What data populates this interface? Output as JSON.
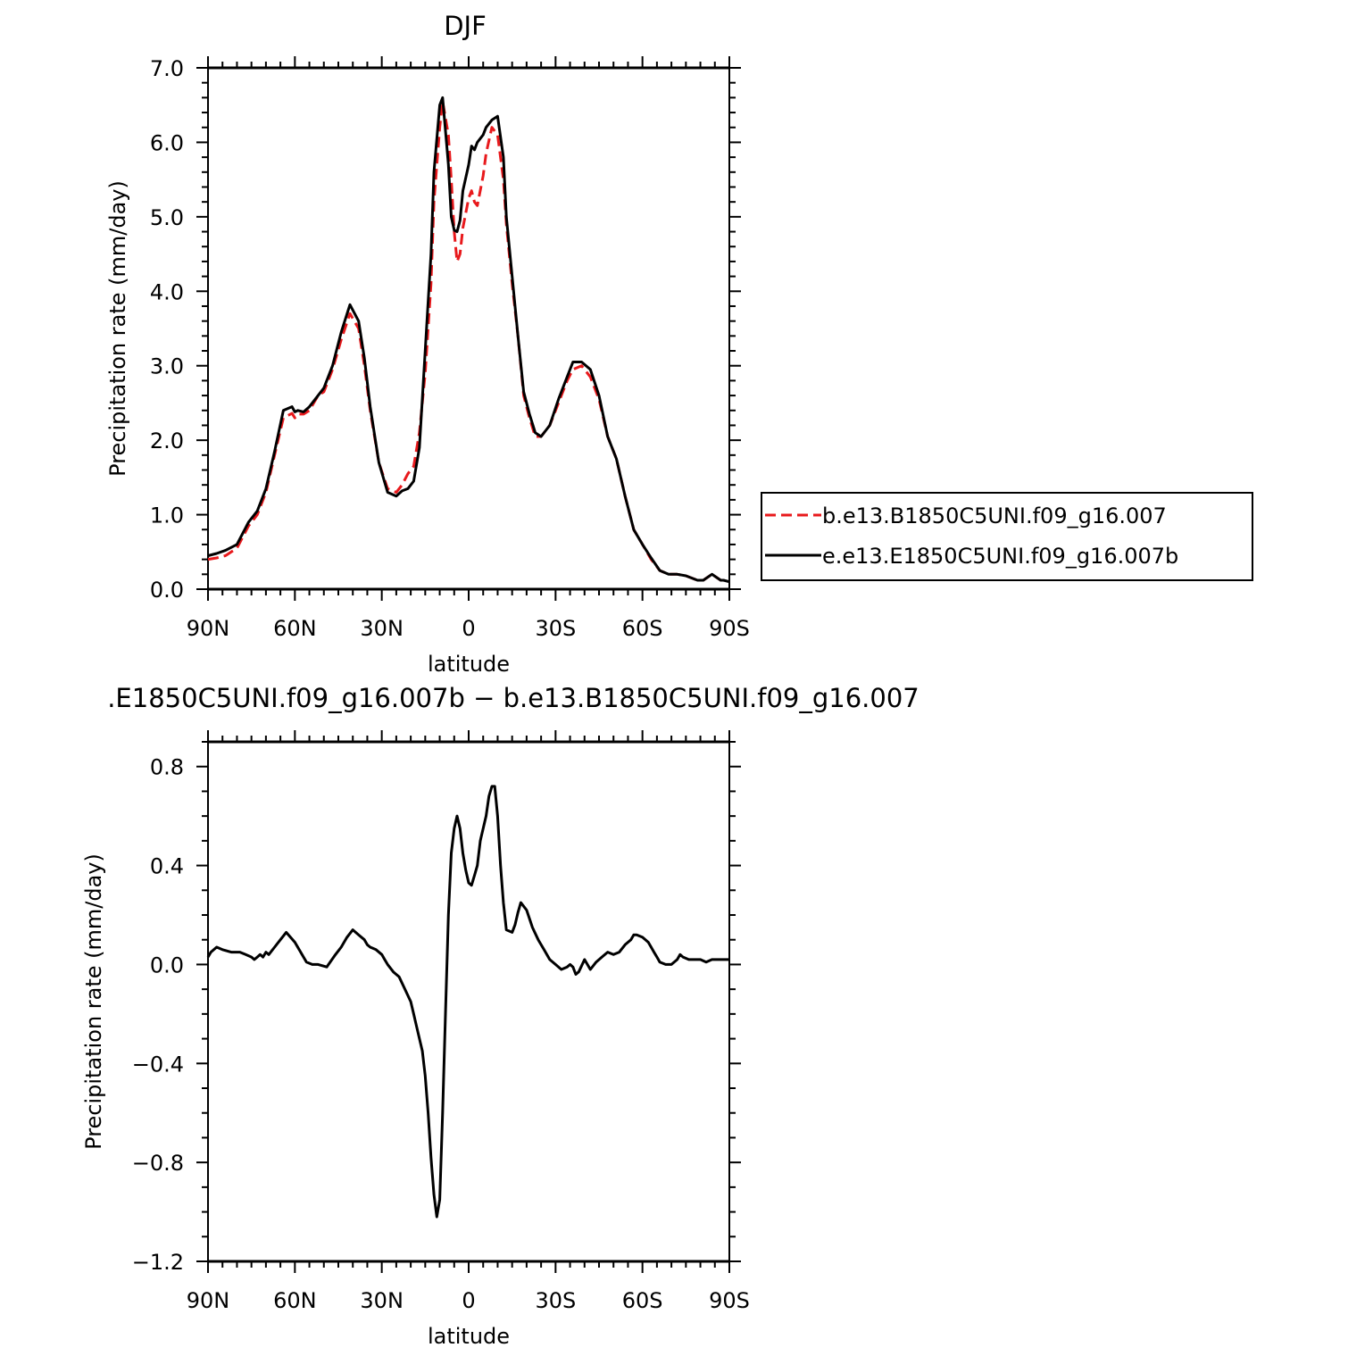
{
  "chart_data": [
    {
      "type": "line",
      "title": "DJF",
      "xlabel": "latitude",
      "ylabel": "Precipitation rate (mm/day)",
      "xlim": [
        90,
        -90
      ],
      "ylim": [
        0,
        7
      ],
      "x_ticks": [
        {
          "value": 90,
          "label": "90N"
        },
        {
          "value": 60,
          "label": "60N"
        },
        {
          "value": 30,
          "label": "30N"
        },
        {
          "value": 0,
          "label": "0"
        },
        {
          "value": -30,
          "label": "30S"
        },
        {
          "value": -60,
          "label": "60S"
        },
        {
          "value": -90,
          "label": "90S"
        }
      ],
      "y_ticks": [
        {
          "value": 0,
          "label": "0.0"
        },
        {
          "value": 1,
          "label": "1.0"
        },
        {
          "value": 2,
          "label": "2.0"
        },
        {
          "value": 3,
          "label": "3.0"
        },
        {
          "value": 4,
          "label": "4.0"
        },
        {
          "value": 5,
          "label": "5.0"
        },
        {
          "value": 6,
          "label": "6.0"
        },
        {
          "value": 7,
          "label": "7.0"
        }
      ],
      "legend_position": "right",
      "series": [
        {
          "name": "b.e13.B1850C5UNI.f09_g16.007",
          "color": "#e8191c",
          "style": "dashed",
          "x": [
            90,
            87,
            84,
            80,
            78,
            76,
            73,
            70,
            67,
            64,
            61,
            60,
            59,
            57,
            55,
            52,
            50,
            47,
            44,
            41,
            38,
            36,
            34,
            31,
            28,
            25,
            23,
            21,
            19,
            17,
            15,
            13,
            12,
            10,
            9,
            7,
            6,
            5,
            4,
            3,
            2,
            0,
            -1,
            -2,
            -3,
            -5,
            -6,
            -8,
            -10,
            -12,
            -13,
            -15,
            -17,
            -19,
            -21,
            -23,
            -25,
            -28,
            -31,
            -34,
            -36,
            -39,
            -42,
            -45,
            -48,
            -51,
            -54,
            -57,
            -60,
            -63,
            -66,
            -69,
            -72,
            -75,
            -77,
            -79,
            -81,
            -84,
            -87,
            -88,
            -90
          ],
          "y": [
            0.4,
            0.42,
            0.45,
            0.55,
            0.7,
            0.85,
            1.0,
            1.3,
            1.8,
            2.3,
            2.36,
            2.3,
            2.35,
            2.35,
            2.4,
            2.6,
            2.65,
            2.95,
            3.35,
            3.7,
            3.5,
            3.0,
            2.4,
            1.7,
            1.35,
            1.3,
            1.4,
            1.55,
            1.65,
            2.1,
            2.9,
            4.1,
            5.2,
            6.2,
            6.55,
            6.1,
            5.5,
            4.8,
            4.4,
            4.5,
            4.85,
            5.25,
            5.35,
            5.2,
            5.15,
            5.55,
            5.85,
            6.2,
            6.1,
            5.5,
            4.9,
            4.1,
            3.4,
            2.6,
            2.3,
            2.05,
            2.05,
            2.2,
            2.5,
            2.8,
            2.95,
            3.0,
            2.85,
            2.55,
            2.05,
            1.75,
            1.25,
            0.8,
            0.6,
            0.4,
            0.25,
            0.2,
            0.2,
            0.18,
            0.15,
            0.12,
            0.12,
            0.2,
            0.12,
            0.12,
            0.1
          ]
        },
        {
          "name": "e.e13.E1850C5UNI.f09_g16.007b",
          "color": "#000000",
          "style": "solid",
          "x": [
            90,
            87,
            84,
            80,
            78,
            76,
            73,
            70,
            67,
            64,
            61,
            60,
            59,
            57,
            55,
            52,
            50,
            47,
            44,
            41,
            38,
            36,
            34,
            31,
            28,
            25,
            23,
            21,
            19,
            17,
            15,
            13,
            12,
            10,
            9,
            7,
            6,
            5,
            4,
            3,
            2,
            0,
            -1,
            -2,
            -3,
            -5,
            -6,
            -8,
            -10,
            -12,
            -13,
            -15,
            -17,
            -19,
            -21,
            -23,
            -25,
            -28,
            -31,
            -34,
            -36,
            -39,
            -42,
            -45,
            -48,
            -51,
            -54,
            -57,
            -60,
            -63,
            -66,
            -69,
            -72,
            -75,
            -77,
            -79,
            -81,
            -84,
            -87,
            -88,
            -90
          ],
          "y": [
            0.45,
            0.48,
            0.52,
            0.6,
            0.75,
            0.9,
            1.05,
            1.35,
            1.85,
            2.4,
            2.45,
            2.38,
            2.4,
            2.38,
            2.45,
            2.6,
            2.7,
            3.0,
            3.45,
            3.82,
            3.6,
            3.1,
            2.45,
            1.7,
            1.3,
            1.25,
            1.32,
            1.35,
            1.45,
            1.9,
            3.2,
            4.5,
            5.6,
            6.5,
            6.6,
            5.7,
            5.0,
            4.82,
            4.8,
            4.95,
            5.35,
            5.7,
            5.95,
            5.9,
            6.0,
            6.1,
            6.2,
            6.3,
            6.35,
            5.8,
            5.0,
            4.2,
            3.4,
            2.65,
            2.35,
            2.1,
            2.05,
            2.2,
            2.55,
            2.85,
            3.05,
            3.05,
            2.95,
            2.6,
            2.05,
            1.75,
            1.25,
            0.8,
            0.6,
            0.42,
            0.25,
            0.2,
            0.2,
            0.18,
            0.15,
            0.12,
            0.12,
            0.2,
            0.12,
            0.12,
            0.1
          ]
        }
      ]
    },
    {
      "type": "line",
      "title": ".E1850C5UNI.f09_g16.007b − b.e13.B1850C5UNI.f09_g16.007",
      "xlabel": "latitude",
      "ylabel": "Precipitation rate (mm/day)",
      "xlim": [
        90,
        -90
      ],
      "ylim": [
        -1.2,
        0.9
      ],
      "x_ticks": [
        {
          "value": 90,
          "label": "90N"
        },
        {
          "value": 60,
          "label": "60N"
        },
        {
          "value": 30,
          "label": "30N"
        },
        {
          "value": 0,
          "label": "0"
        },
        {
          "value": -30,
          "label": "30S"
        },
        {
          "value": -60,
          "label": "60S"
        },
        {
          "value": -90,
          "label": "90S"
        }
      ],
      "y_ticks": [
        {
          "value": -1.2,
          "label": "−1.2"
        },
        {
          "value": -0.8,
          "label": "−0.8"
        },
        {
          "value": -0.4,
          "label": "−0.4"
        },
        {
          "value": 0,
          "label": "0.0"
        },
        {
          "value": 0.4,
          "label": "0.4"
        },
        {
          "value": 0.8,
          "label": "0.8"
        }
      ],
      "series": [
        {
          "color": "#000000",
          "style": "solid",
          "x": [
            90,
            89,
            87,
            85,
            82,
            79,
            77,
            75,
            74,
            73,
            72,
            71,
            70,
            69,
            67,
            65,
            63,
            60,
            58,
            56,
            54,
            52,
            49,
            46,
            44,
            42,
            40,
            38,
            36,
            35,
            34,
            32,
            30,
            29,
            28,
            26,
            24,
            22,
            20,
            19,
            18,
            16,
            15,
            14,
            13,
            12,
            11,
            10,
            9,
            8,
            7,
            6,
            5,
            4,
            3,
            2,
            1,
            0,
            -1,
            -2,
            -3,
            -4,
            -6,
            -7,
            -8,
            -9,
            -10,
            -11,
            -12,
            -13,
            -15,
            -16,
            -17,
            -18,
            -20,
            -22,
            -24,
            -26,
            -28,
            -30,
            -32,
            -34,
            -35,
            -36,
            -37,
            -38,
            -40,
            -42,
            -44,
            -46,
            -48,
            -50,
            -52,
            -54,
            -56,
            -57,
            -58,
            -60,
            -62,
            -63,
            -64,
            -65,
            -66,
            -68,
            -70,
            -72,
            -73,
            -74,
            -76,
            -78,
            -80,
            -82,
            -84,
            -86,
            -88,
            -90
          ],
          "y": [
            0.03,
            0.05,
            0.07,
            0.06,
            0.05,
            0.05,
            0.04,
            0.03,
            0.02,
            0.03,
            0.04,
            0.03,
            0.05,
            0.04,
            0.07,
            0.1,
            0.13,
            0.09,
            0.05,
            0.01,
            0.0,
            0.0,
            -0.01,
            0.04,
            0.07,
            0.11,
            0.14,
            0.12,
            0.1,
            0.08,
            0.07,
            0.06,
            0.04,
            0.02,
            0.0,
            -0.03,
            -0.05,
            -0.1,
            -0.15,
            -0.2,
            -0.25,
            -0.35,
            -0.45,
            -0.6,
            -0.78,
            -0.93,
            -1.02,
            -0.95,
            -0.6,
            -0.2,
            0.2,
            0.45,
            0.55,
            0.6,
            0.55,
            0.45,
            0.38,
            0.33,
            0.32,
            0.36,
            0.4,
            0.5,
            0.6,
            0.68,
            0.72,
            0.72,
            0.6,
            0.4,
            0.25,
            0.14,
            0.13,
            0.16,
            0.21,
            0.25,
            0.22,
            0.15,
            0.1,
            0.06,
            0.02,
            0.0,
            -0.02,
            -0.01,
            0.0,
            -0.01,
            -0.04,
            -0.03,
            0.02,
            -0.02,
            0.01,
            0.03,
            0.05,
            0.04,
            0.05,
            0.08,
            0.1,
            0.12,
            0.12,
            0.11,
            0.09,
            0.07,
            0.05,
            0.03,
            0.01,
            0.0,
            0.0,
            0.02,
            0.04,
            0.03,
            0.02,
            0.02,
            0.02,
            0.01,
            0.02,
            0.02,
            0.02,
            0.02
          ]
        }
      ]
    }
  ]
}
